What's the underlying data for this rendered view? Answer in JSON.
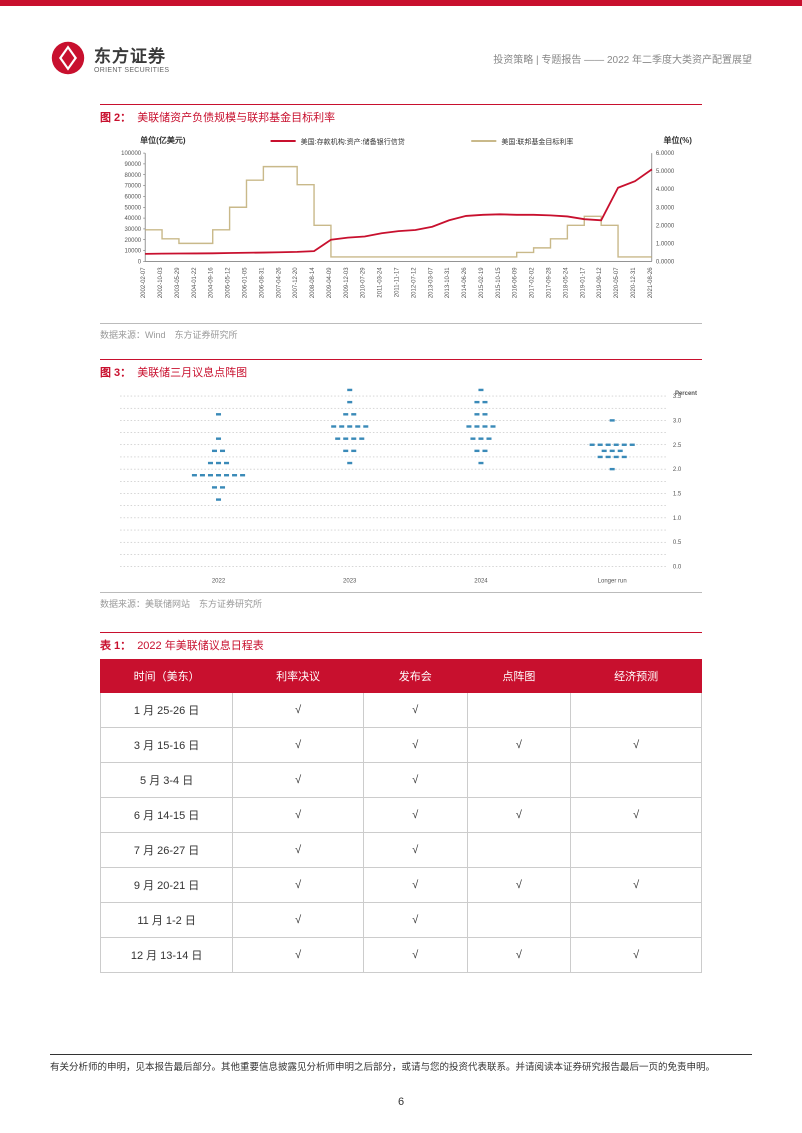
{
  "header": {
    "logo_cn": "东方证券",
    "logo_en": "ORIENT SECURITIES",
    "breadcrumb": "投资策略 | 专题报告 —— 2022 年二季度大类资产配置展望"
  },
  "fig2": {
    "num": "图 2：",
    "name": "美联储资产负债规模与联邦基金目标利率",
    "unit_left": "单位(亿美元)",
    "unit_right": "单位(%)",
    "legend_a": "美国:存款机构:资产:储备银行信贷",
    "legend_b": "美国:联邦基金目标利率",
    "source": "数据来源：Wind　东方证券研究所",
    "y_left": {
      "min": 0,
      "max": 100000,
      "ticks": [
        0,
        10000,
        20000,
        30000,
        40000,
        50000,
        60000,
        70000,
        80000,
        90000,
        100000
      ]
    },
    "y_right": {
      "min": 0,
      "max": 6,
      "ticks": [
        "0.0000",
        "1.0000",
        "2.0000",
        "3.0000",
        "4.0000",
        "5.0000",
        "6.0000"
      ]
    },
    "x_labels": [
      "2002-02-07",
      "2002-10-03",
      "2003-05-29",
      "2004-01-22",
      "2004-09-16",
      "2005-05-12",
      "2006-01-05",
      "2006-08-31",
      "2007-04-26",
      "2007-12-20",
      "2008-08-14",
      "2009-04-09",
      "2009-12-03",
      "2010-07-29",
      "2011-03-24",
      "2011-11-17",
      "2012-07-12",
      "2013-03-07",
      "2013-10-31",
      "2014-06-26",
      "2015-02-19",
      "2015-10-15",
      "2016-06-09",
      "2017-02-02",
      "2017-09-28",
      "2018-05-24",
      "2019-01-17",
      "2019-09-12",
      "2020-05-07",
      "2020-12-31",
      "2021-08-26"
    ],
    "series_a_color": "#c8102e",
    "series_b_color": "#c9b98a",
    "series_a": [
      7000,
      7200,
      7300,
      7400,
      7500,
      7800,
      8000,
      8200,
      8500,
      8800,
      9500,
      20000,
      22000,
      23000,
      26000,
      28000,
      29000,
      32000,
      38000,
      42000,
      43000,
      43500,
      43000,
      43000,
      42500,
      41500,
      39000,
      38000,
      68000,
      74000,
      85000
    ],
    "series_b": [
      1.75,
      1.25,
      1.0,
      1.0,
      1.75,
      3.0,
      4.5,
      5.25,
      5.25,
      4.25,
      2.0,
      0.25,
      0.25,
      0.25,
      0.25,
      0.25,
      0.25,
      0.25,
      0.25,
      0.25,
      0.25,
      0.25,
      0.5,
      0.75,
      1.25,
      2.0,
      2.5,
      2.0,
      0.25,
      0.25,
      0.25
    ],
    "bg": "#ffffff",
    "grid_color": "#dddddd"
  },
  "fig3": {
    "num": "图 3：",
    "name": "美联储三月议息点阵图",
    "source": "数据来源：美联储网站　东方证券研究所",
    "percent_label": "Percent",
    "x_labels": [
      "2022",
      "2023",
      "2024",
      "Longer run"
    ],
    "y_ticks": [
      "0.0",
      "0.5",
      "1.0",
      "1.5",
      "2.0",
      "2.5",
      "3.0",
      "3.5"
    ],
    "dot_color": "#3a8ab8",
    "grid_color": "#999999",
    "columns": [
      {
        "x": 0.18,
        "points": [
          [
            1.375,
            1
          ],
          [
            1.625,
            2
          ],
          [
            1.875,
            7
          ],
          [
            2.125,
            3
          ],
          [
            2.375,
            2
          ],
          [
            2.625,
            1
          ],
          [
            3.125,
            1
          ]
        ]
      },
      {
        "x": 0.42,
        "points": [
          [
            2.125,
            1
          ],
          [
            2.375,
            2
          ],
          [
            2.625,
            4
          ],
          [
            2.875,
            5
          ],
          [
            3.125,
            2
          ],
          [
            3.375,
            1
          ],
          [
            3.625,
            1
          ]
        ]
      },
      {
        "x": 0.66,
        "points": [
          [
            2.125,
            1
          ],
          [
            2.375,
            2
          ],
          [
            2.625,
            3
          ],
          [
            2.875,
            4
          ],
          [
            3.125,
            2
          ],
          [
            3.375,
            2
          ],
          [
            3.625,
            1
          ]
        ]
      },
      {
        "x": 0.9,
        "points": [
          [
            2.0,
            1
          ],
          [
            2.25,
            4
          ],
          [
            2.375,
            3
          ],
          [
            2.5,
            6
          ],
          [
            3.0,
            1
          ]
        ]
      }
    ]
  },
  "table1": {
    "num": "表 1：",
    "name": "2022 年美联储议息日程表",
    "headers": [
      "时间（美东）",
      "利率决议",
      "发布会",
      "点阵图",
      "经济预测"
    ],
    "rows": [
      [
        "1 月 25-26 日",
        "√",
        "√",
        "",
        ""
      ],
      [
        "3 月 15-16 日",
        "√",
        "√",
        "√",
        "√"
      ],
      [
        "5 月 3-4 日",
        "√",
        "√",
        "",
        ""
      ],
      [
        "6 月 14-15 日",
        "√",
        "√",
        "√",
        "√"
      ],
      [
        "7 月 26-27 日",
        "√",
        "√",
        "",
        ""
      ],
      [
        "9 月 20-21 日",
        "√",
        "√",
        "√",
        "√"
      ],
      [
        "11 月 1-2 日",
        "√",
        "√",
        "",
        ""
      ],
      [
        "12 月 13-14 日",
        "√",
        "√",
        "√",
        "√"
      ]
    ],
    "header_bg": "#c8102e",
    "header_fg": "#ffffff"
  },
  "footer": {
    "disclaimer": "有关分析师的申明，见本报告最后部分。其他重要信息披露见分析师申明之后部分，或请与您的投资代表联系。并请阅读本证券研究报告最后一页的免责申明。",
    "page": "6"
  }
}
